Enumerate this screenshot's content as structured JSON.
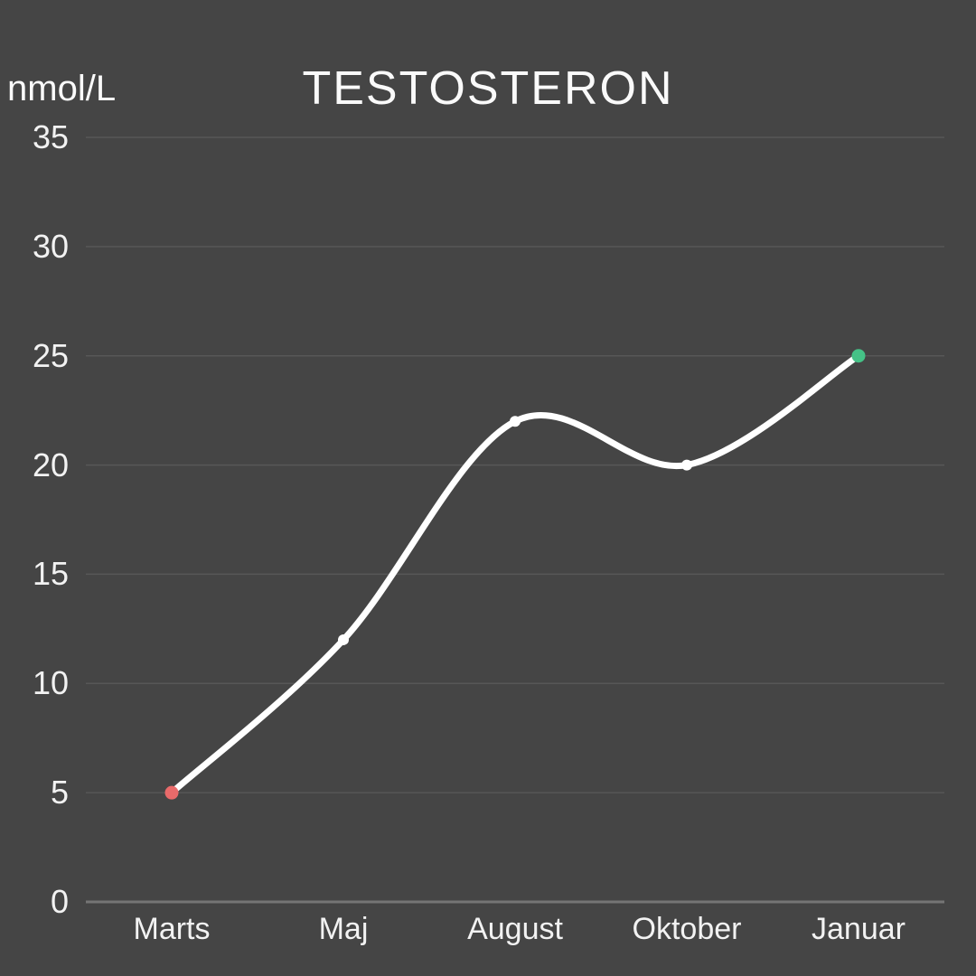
{
  "header": {
    "title": "TESTOSTERON",
    "unit_label": "nmol/L"
  },
  "chart_data": {
    "type": "line",
    "title": "TESTOSTERON",
    "ylabel": "nmol/L",
    "xlabel": "",
    "categories": [
      "Marts",
      "Maj",
      "August",
      "Oktober",
      "Januar"
    ],
    "values": [
      5,
      12,
      22,
      20,
      25
    ],
    "ylim": [
      0,
      35
    ],
    "yticks": [
      0,
      5,
      10,
      15,
      20,
      25,
      30,
      35
    ],
    "grid": "horizontal",
    "legend": "none",
    "smooth": true,
    "line_color": "#ffffff",
    "point_colors": [
      "#e96a6a",
      "#ffffff",
      "#ffffff",
      "#ffffff",
      "#45c287"
    ],
    "background_color": "#454545",
    "grid_color": "rgba(255,255,255,0.10)",
    "axis_line_color": "rgba(255,255,255,0.26)",
    "text_color": "#f2f2f2"
  }
}
